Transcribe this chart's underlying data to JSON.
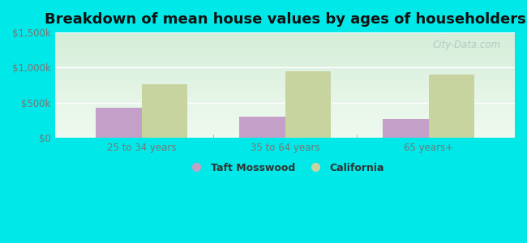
{
  "title": "Breakdown of mean house values by ages of householders",
  "categories": [
    "25 to 34 years",
    "35 to 64 years",
    "65 years+"
  ],
  "series": [
    {
      "name": "Taft Mosswood",
      "values": [
        430000,
        300000,
        270000
      ],
      "color": "#c4a0c8"
    },
    {
      "name": "California",
      "values": [
        760000,
        950000,
        900000
      ],
      "color": "#c8d4a0"
    }
  ],
  "ylim": [
    0,
    1500000
  ],
  "yticks": [
    0,
    500000,
    1000000,
    1500000
  ],
  "ytick_labels": [
    "$0",
    "$500k",
    "$1,000k",
    "$1,500k"
  ],
  "background_color": "#00e8e8",
  "plot_bg_top": "#d4edd8",
  "plot_bg_bottom": "#f0faf0",
  "title_fontsize": 13,
  "bar_width": 0.32,
  "watermark": "City-Data.com",
  "grid_color": "#d8e8d8",
  "tick_color": "#999999",
  "label_color": "#777777"
}
